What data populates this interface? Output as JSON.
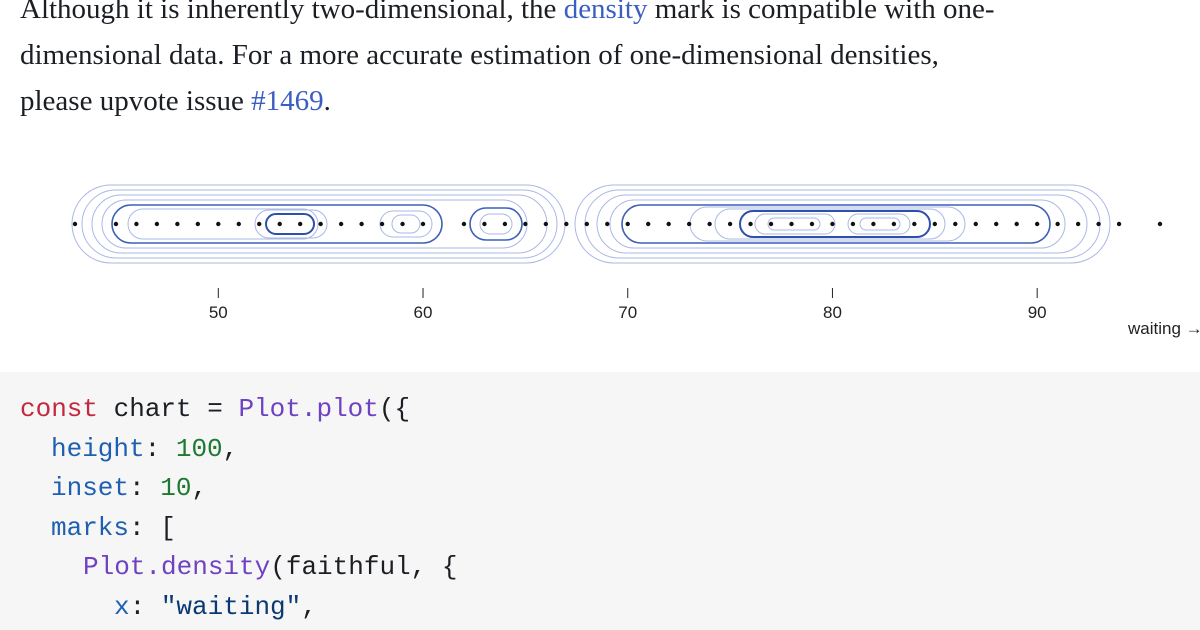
{
  "intro": {
    "text1": "Although it is inherently two-dimensional, the ",
    "link1": "density",
    "text2": " mark is compatible with one-",
    "text3": "dimensional data. For a more accurate estimation of one-dimensional densities,",
    "text4": "please upvote issue ",
    "link2": "#1469",
    "text5": "."
  },
  "chart_data": {
    "type": "density",
    "x": [
      43,
      45,
      46,
      47,
      48,
      49,
      50,
      51,
      52,
      53,
      54,
      55,
      56,
      57,
      58,
      59,
      60,
      62,
      63,
      64,
      65,
      66,
      67,
      68,
      69,
      70,
      71,
      72,
      73,
      74,
      75,
      76,
      77,
      78,
      79,
      80,
      81,
      82,
      83,
      84,
      85,
      86,
      87,
      88,
      89,
      90,
      91,
      92,
      93,
      94,
      96
    ],
    "xlim": [
      43,
      96
    ],
    "xticks": [
      50,
      60,
      70,
      80,
      90
    ],
    "x_label": "waiting →",
    "color": "#111111"
  },
  "code": {
    "lines": [
      [
        "const",
        " chart = ",
        "Plot.plot",
        "({"
      ],
      [
        "height",
        ": ",
        "100",
        ","
      ],
      [
        "inset",
        ": ",
        "10",
        ","
      ],
      [
        "marks",
        ": ["
      ],
      [
        "Plot.density",
        "(faithful, {"
      ],
      [
        "x",
        ": ",
        "\"waiting\"",
        ","
      ]
    ]
  }
}
